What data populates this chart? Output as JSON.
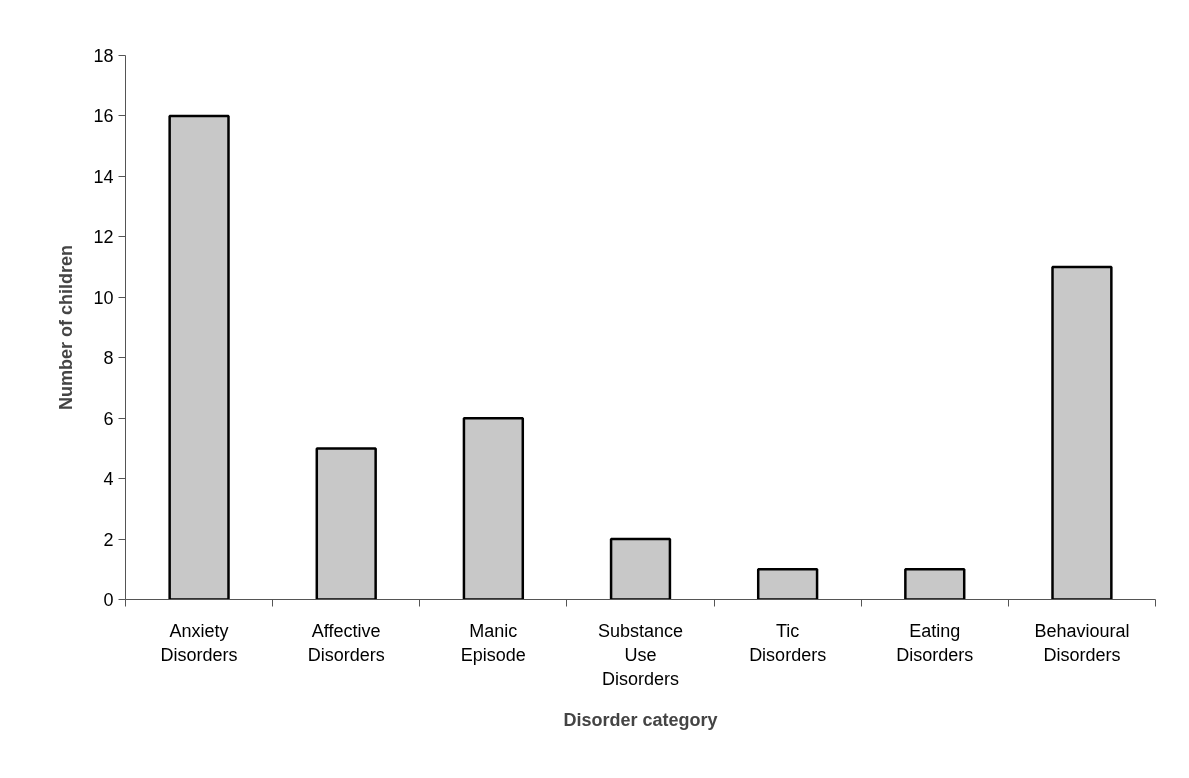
{
  "chart_data": {
    "type": "bar",
    "xlabel": "Disorder category",
    "ylabel": "Number of children",
    "categories": [
      "Anxiety Disorders",
      "Affective Disorders",
      "Manic Episode",
      "Substance Use Disorders",
      "Tic Disorders",
      "Eating Disorders",
      "Behavioural Disorders"
    ],
    "values": [
      16,
      5,
      6,
      2,
      1,
      1,
      11
    ],
    "color": "#c8c8c8",
    "ylim": [
      0,
      18
    ],
    "yticks": [
      0,
      2,
      4,
      6,
      8,
      10,
      12,
      14,
      16,
      18
    ],
    "grid": false
  }
}
